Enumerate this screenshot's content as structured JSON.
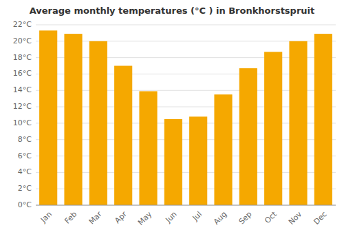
{
  "chart_data": {
    "type": "bar",
    "title": "Average monthly temperatures (°C ) in Bronkhorstspruit",
    "categories": [
      "Jan",
      "Feb",
      "Mar",
      "Apr",
      "May",
      "Jun",
      "Jul",
      "Aug",
      "Sep",
      "Oct",
      "Nov",
      "Dec"
    ],
    "values": [
      21.3,
      20.9,
      20.0,
      17.0,
      13.9,
      10.5,
      10.8,
      13.5,
      16.7,
      18.7,
      20.0,
      20.9
    ],
    "color": "#F5A800",
    "ylim": [
      0,
      22
    ],
    "yticks": [
      {
        "value": 0,
        "label": "0°C"
      },
      {
        "value": 2,
        "label": "2°C"
      },
      {
        "value": 4,
        "label": "4°C"
      },
      {
        "value": 6,
        "label": "6°C"
      },
      {
        "value": 8,
        "label": "8°C"
      },
      {
        "value": 10,
        "label": "10°C"
      },
      {
        "value": 12,
        "label": "12°C"
      },
      {
        "value": 14,
        "label": "14°C"
      },
      {
        "value": 16,
        "label": "16°C"
      },
      {
        "value": 18,
        "label": "18°C"
      },
      {
        "value": 20,
        "label": "20°C"
      },
      {
        "value": 22,
        "label": "22°C"
      }
    ],
    "grid": true
  }
}
